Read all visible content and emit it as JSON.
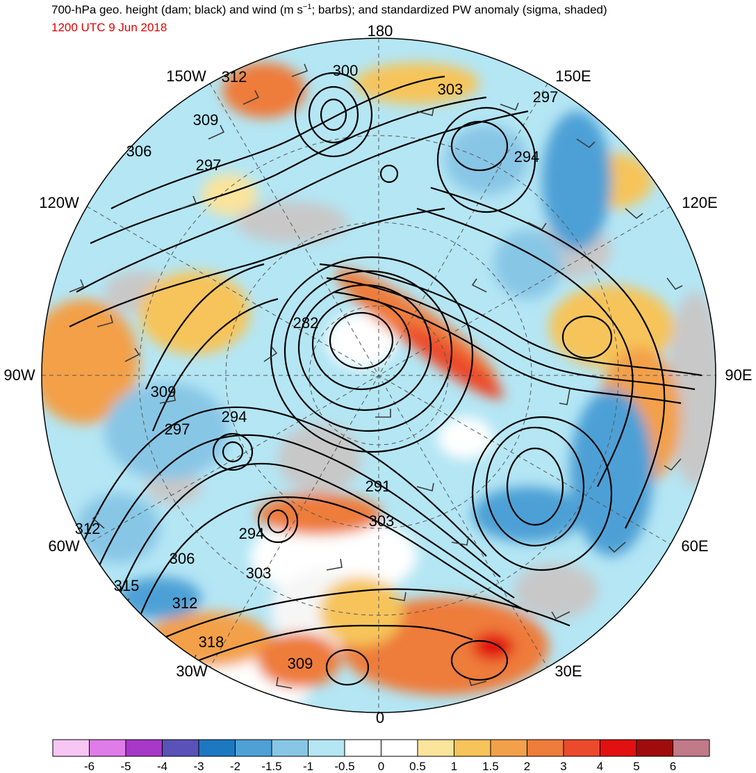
{
  "title_line": "700-hPa geo. height (dam; black) and wind (m s",
  "title_sup": "−1",
  "title_rest": "; barbs); and standardized PW anomaly (sigma, shaded)",
  "subtitle": "1200 UTC 9 Jun 2018",
  "longitude_labels": {
    "lon_180": "180",
    "lon_150e": "150E",
    "lon_120e": "120E",
    "lon_90e": "90E",
    "lon_60e": "60E",
    "lon_30e": "30E",
    "lon_0": "0",
    "lon_30w": "30W",
    "lon_60w": "60W",
    "lon_90w": "90W",
    "lon_120w": "120W",
    "lon_150w": "150W"
  },
  "contour_labels": {
    "c312a": "312",
    "c300": "300",
    "c303a": "303",
    "c297a": "297",
    "c309a": "309",
    "c306a": "306",
    "c297b": "297",
    "c294a": "294",
    "c282": "282",
    "c309b": "309",
    "c294b": "294",
    "c297c": "297",
    "c291": "291",
    "c303b": "303",
    "c294c": "294",
    "c312b": "312",
    "c306b": "306",
    "c303c": "303",
    "c315": "315",
    "c312c": "312",
    "c318": "318",
    "c309c": "309"
  },
  "colorbar": {
    "labels": [
      "-6",
      "-5",
      "-4",
      "-3",
      "-2",
      "-1.5",
      "-1",
      "-0.5",
      "0",
      "0.5",
      "1",
      "1.5",
      "2",
      "3",
      "4",
      "5",
      "6"
    ],
    "colors": [
      "#f7c6f5",
      "#e07ce8",
      "#a838c8",
      "#5a52b8",
      "#1c78c0",
      "#4ea0d6",
      "#88c6e6",
      "#b4e6f4",
      "#ffffff",
      "#ffffff",
      "#fbe49c",
      "#f6c45a",
      "#f3a04a",
      "#ee7c3a",
      "#ec4a2c",
      "#e21010",
      "#a00c0c",
      "#c07a88"
    ]
  },
  "colors": {
    "land_gray": "#c8c8c8",
    "contour": "#000000",
    "barb": "#3a3a3a",
    "subtitle": "#e00000"
  }
}
